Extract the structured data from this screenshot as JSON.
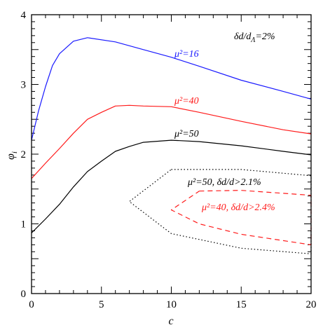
{
  "chart_data": {
    "type": "line",
    "xlabel": "c",
    "ylabel": "φ",
    "ylabel_sub": "i",
    "xlim": [
      0,
      20
    ],
    "ylim": [
      0,
      4
    ],
    "x_ticks": [
      0,
      5,
      10,
      15,
      20
    ],
    "y_ticks": [
      0,
      1,
      2,
      3,
      4
    ],
    "corner_label": "δd/d",
    "corner_label_sub": "Λ",
    "corner_label_tail": "=2%",
    "series": [
      {
        "name": "μ²=16",
        "color": "#1a1aff",
        "style": "solid",
        "x": [
          0,
          0.5,
          1,
          1.5,
          2,
          3,
          4,
          6,
          8,
          10,
          12,
          15,
          18,
          20
        ],
        "y": [
          2.2,
          2.62,
          2.97,
          3.27,
          3.44,
          3.62,
          3.67,
          3.61,
          3.5,
          3.39,
          3.26,
          3.06,
          2.9,
          2.79
        ]
      },
      {
        "name": "μ²=40",
        "color": "#ff1a1a",
        "style": "solid",
        "x": [
          0,
          1,
          2,
          3,
          4,
          5,
          6,
          7,
          8,
          10,
          12,
          15,
          18,
          20
        ],
        "y": [
          1.65,
          1.87,
          2.08,
          2.3,
          2.5,
          2.6,
          2.69,
          2.7,
          2.69,
          2.68,
          2.6,
          2.47,
          2.35,
          2.29
        ]
      },
      {
        "name": "μ²=50",
        "color": "#000000",
        "style": "solid",
        "x": [
          0,
          1,
          2,
          3,
          4,
          5,
          6,
          7,
          8,
          10,
          12,
          15,
          18,
          20
        ],
        "y": [
          0.87,
          1.07,
          1.28,
          1.53,
          1.75,
          1.9,
          2.04,
          2.11,
          2.17,
          2.2,
          2.18,
          2.12,
          2.04,
          1.99
        ]
      },
      {
        "name": "μ²=50,  δd/d>2.1%",
        "color": "#000000",
        "style": "dotted",
        "x": [
          10,
          15,
          20,
          20,
          15,
          10,
          7,
          10
        ],
        "y": [
          1.78,
          1.78,
          1.69,
          0.57,
          0.65,
          0.86,
          1.32,
          1.78
        ]
      },
      {
        "name": "μ²=40,  δd/d>2.4%",
        "color": "#ff1a1a",
        "style": "dashed",
        "x": [
          12,
          15,
          20,
          20,
          15,
          12,
          10,
          12
        ],
        "y": [
          1.47,
          1.48,
          1.41,
          0.7,
          0.85,
          1.0,
          1.2,
          1.47
        ]
      }
    ],
    "labels": [
      {
        "text": "μ²=16",
        "color": "#1a1aff"
      },
      {
        "text": "μ²=40",
        "color": "#ff1a1a"
      },
      {
        "text": "μ²=50",
        "color": "#000000"
      },
      {
        "text": "μ²=50,  δd/d>2.1%",
        "color": "#000000"
      },
      {
        "text": "μ²=40,  δd/d>2.4%",
        "color": "#ff1a1a"
      }
    ]
  }
}
